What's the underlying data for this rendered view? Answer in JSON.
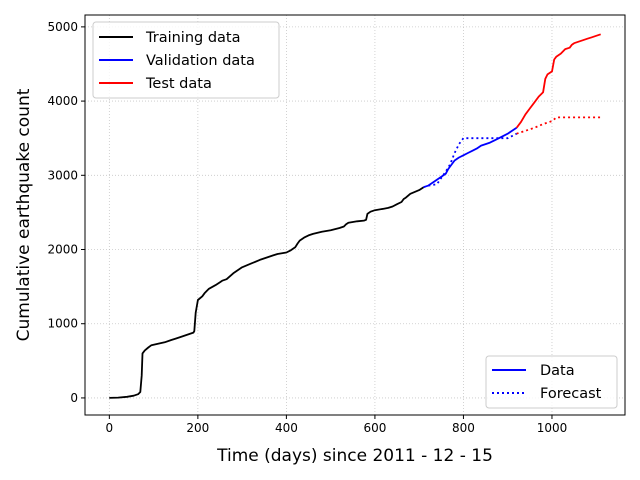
{
  "chart_data": {
    "type": "line",
    "title": "",
    "xlabel": "Time (days) since 2011 - 12 - 15",
    "ylabel": "Cumulative earthquake count",
    "xlim": [
      -55,
      1165
    ],
    "ylim": [
      -230,
      5160
    ],
    "x_ticks": [
      0,
      200,
      400,
      600,
      800,
      1000
    ],
    "y_ticks": [
      0,
      1000,
      2000,
      3000,
      4000,
      5000
    ],
    "grid": true,
    "legends": [
      {
        "placement": "top-left",
        "entries": [
          "Training data",
          "Validation data",
          "Test data"
        ]
      },
      {
        "placement": "bottom-right",
        "entries": [
          "Data",
          "Forecast"
        ]
      }
    ],
    "series": [
      {
        "name": "Training data",
        "color": "#000000",
        "style": "solid",
        "x": [
          0,
          20,
          40,
          55,
          65,
          70,
          73,
          75,
          80,
          88,
          95,
          110,
          125,
          140,
          150,
          160,
          180,
          190,
          192,
          195,
          200,
          210,
          215,
          225,
          240,
          250,
          255,
          265,
          280,
          300,
          320,
          340,
          360,
          370,
          380,
          400,
          410,
          420,
          425,
          430,
          440,
          450,
          460,
          480,
          500,
          520,
          530,
          535,
          540,
          560,
          575,
          580,
          583,
          590,
          600,
          620,
          630,
          640,
          650,
          660,
          665,
          670,
          680,
          700,
          710
        ],
        "y": [
          0,
          5,
          15,
          30,
          50,
          80,
          300,
          600,
          640,
          680,
          710,
          730,
          750,
          780,
          800,
          820,
          860,
          880,
          900,
          1150,
          1320,
          1370,
          1410,
          1470,
          1520,
          1560,
          1580,
          1600,
          1680,
          1760,
          1810,
          1860,
          1900,
          1920,
          1940,
          1960,
          1990,
          2030,
          2080,
          2120,
          2160,
          2190,
          2210,
          2240,
          2260,
          2290,
          2310,
          2340,
          2360,
          2380,
          2390,
          2400,
          2480,
          2510,
          2530,
          2550,
          2560,
          2580,
          2610,
          2640,
          2680,
          2700,
          2750,
          2800,
          2840
        ]
      },
      {
        "name": "Validation data",
        "color": "#0000ff",
        "style": "solid",
        "x": [
          710,
          720,
          730,
          740,
          750,
          760,
          765,
          770,
          780,
          790,
          800,
          810,
          820,
          830,
          840,
          850,
          860,
          870,
          880,
          900,
          910,
          920
        ],
        "y": [
          2840,
          2860,
          2900,
          2940,
          2980,
          3020,
          3080,
          3120,
          3200,
          3240,
          3270,
          3300,
          3330,
          3360,
          3400,
          3420,
          3440,
          3470,
          3500,
          3560,
          3600,
          3640
        ]
      },
      {
        "name": "Test data",
        "color": "#ff0000",
        "style": "solid",
        "x": [
          920,
          930,
          940,
          950,
          960,
          970,
          980,
          985,
          990,
          1000,
          1005,
          1010,
          1020,
          1030,
          1040,
          1045,
          1050,
          1060,
          1070,
          1080,
          1090,
          1100,
          1110
        ],
        "y": [
          3640,
          3720,
          3820,
          3900,
          3980,
          4060,
          4120,
          4300,
          4360,
          4400,
          4560,
          4600,
          4640,
          4700,
          4720,
          4760,
          4780,
          4800,
          4820,
          4840,
          4860,
          4880,
          4900
        ]
      },
      {
        "name": "Forecast (validation)",
        "color": "#0000ff",
        "style": "dotted",
        "x": [
          710,
          720,
          740,
          760,
          770,
          780,
          790,
          800,
          820,
          840,
          860,
          880,
          900,
          920
        ],
        "y": [
          2840,
          2860,
          2880,
          3050,
          3150,
          3300,
          3420,
          3500,
          3500,
          3500,
          3500,
          3500,
          3500,
          3560
        ]
      },
      {
        "name": "Forecast (test)",
        "color": "#ff0000",
        "style": "dotted",
        "x": [
          920,
          940,
          960,
          980,
          1000,
          1010,
          1040,
          1060,
          1080,
          1100,
          1110
        ],
        "y": [
          3560,
          3600,
          3640,
          3690,
          3730,
          3780,
          3780,
          3780,
          3780,
          3780,
          3780
        ]
      }
    ]
  },
  "legend_main": [
    {
      "label": "Training data",
      "color": "#000000"
    },
    {
      "label": "Validation data",
      "color": "#0000ff"
    },
    {
      "label": "Test data",
      "color": "#ff0000"
    }
  ],
  "legend_style": [
    {
      "label": "Data",
      "color": "#0000ff",
      "style": "solid"
    },
    {
      "label": "Forecast",
      "color": "#0000ff",
      "style": "dotted"
    }
  ]
}
